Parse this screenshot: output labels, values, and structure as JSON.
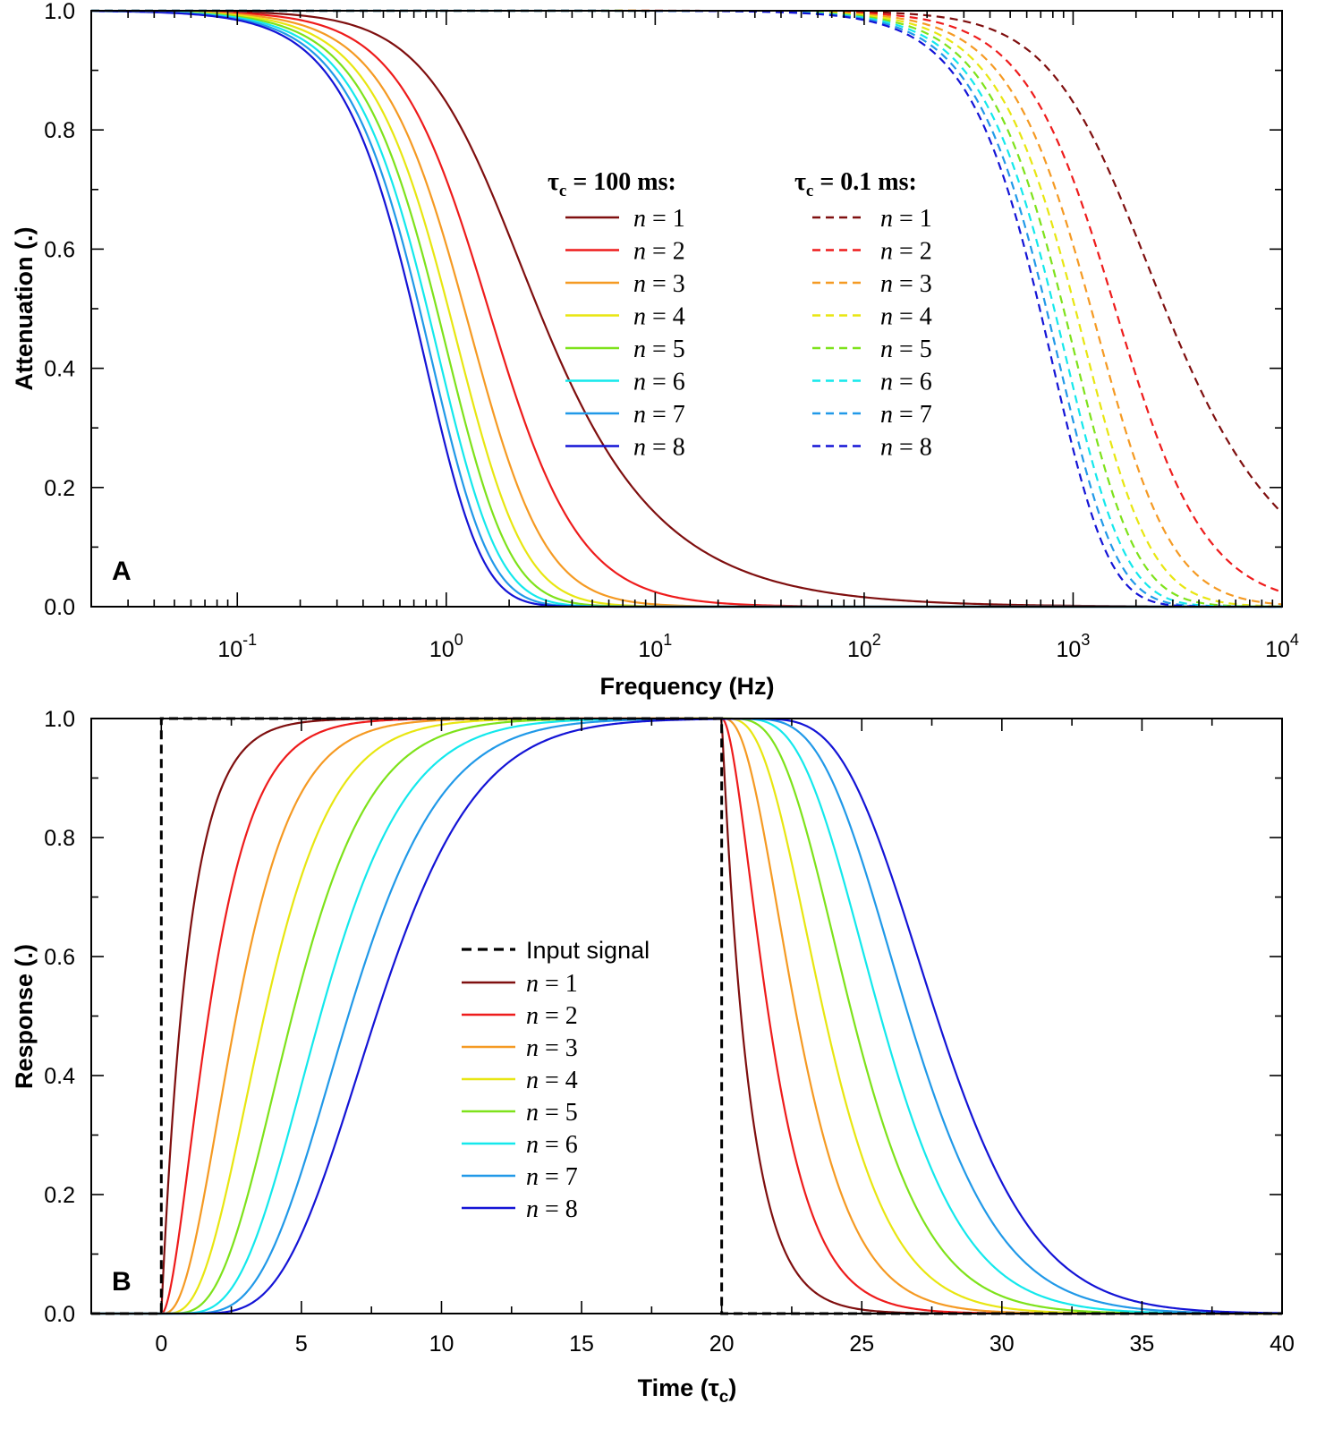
{
  "chart_data": [
    {
      "panel": "A",
      "type": "line",
      "xlabel": "Frequency  (Hz)",
      "ylabel": "Attenuation  (.)",
      "xscale": "log",
      "xlim": [
        0.02,
        10000
      ],
      "ylim": [
        0,
        1
      ],
      "x_tick_labels": [
        {
          "base": "10",
          "exp": "-1",
          "value": 0.1
        },
        {
          "base": "10",
          "exp": "0",
          "value": 1
        },
        {
          "base": "10",
          "exp": "1",
          "value": 10
        },
        {
          "base": "10",
          "exp": "2",
          "value": 100
        },
        {
          "base": "10",
          "exp": "3",
          "value": 1000
        },
        {
          "base": "10",
          "exp": "4",
          "value": 10000
        }
      ],
      "y_ticks": [
        0,
        0.2,
        0.4,
        0.6,
        0.8,
        1
      ],
      "y_tick_labels": [
        "0.0",
        "0.2",
        "0.4",
        "0.6",
        "0.8",
        "1.0"
      ],
      "model": "attenuation = (1 + (2*pi*f*tau_c)^2)^(-n/2)",
      "legend_groups": [
        {
          "heading": "τ",
          "heading_sub": "c",
          "heading_rest": " = 100 ms:",
          "tau_c_seconds": 0.1,
          "dash": "solid",
          "position": "center"
        },
        {
          "heading": "τ",
          "heading_sub": "c",
          "heading_rest": " = 0.1 ms:",
          "tau_c_seconds": 0.0001,
          "dash": "dashed",
          "position": "center-right"
        }
      ],
      "series": [
        {
          "n": 1,
          "label_var": "n",
          "label_rest": " = 1",
          "color": "#7f0f0f"
        },
        {
          "n": 2,
          "label_var": "n",
          "label_rest": " = 2",
          "color": "#ee1c1c"
        },
        {
          "n": 3,
          "label_var": "n",
          "label_rest": " = 3",
          "color": "#f59a23"
        },
        {
          "n": 4,
          "label_var": "n",
          "label_rest": " = 4",
          "color": "#e8e611"
        },
        {
          "n": 5,
          "label_var": "n",
          "label_rest": " = 5",
          "color": "#7ee21b"
        },
        {
          "n": 6,
          "label_var": "n",
          "label_rest": " = 6",
          "color": "#14e8ec"
        },
        {
          "n": 7,
          "label_var": "n",
          "label_rest": " = 7",
          "color": "#2199e8"
        },
        {
          "n": 8,
          "label_var": "n",
          "label_rest": " = 8",
          "color": "#1414d6"
        }
      ]
    },
    {
      "panel": "B",
      "type": "line",
      "xlabel": "Time  (τ",
      "xlabel_sub": "c",
      "xlabel_end": ")",
      "ylabel": "Response  (.)",
      "xlim": [
        -2.5,
        40
      ],
      "ylim": [
        0,
        1
      ],
      "x_ticks": [
        0,
        5,
        10,
        15,
        20,
        25,
        30,
        35,
        40
      ],
      "x_tick_labels": [
        "0",
        "5",
        "10",
        "15",
        "20",
        "25",
        "30",
        "35",
        "40"
      ],
      "y_ticks": [
        0,
        0.2,
        0.4,
        0.6,
        0.8,
        1
      ],
      "y_tick_labels": [
        "0.0",
        "0.2",
        "0.4",
        "0.6",
        "0.8",
        "1.0"
      ],
      "input_signal": {
        "label": "Input signal",
        "on": 0,
        "off": 20,
        "color": "#000000",
        "dash": "dashed"
      },
      "model": "step response of n cascaded first-order stages, pulse from t=0 to t=20 tau_c",
      "legend_position": "center",
      "series": [
        {
          "n": 1,
          "label_var": "n",
          "label_rest": " = 1",
          "color": "#7f0f0f"
        },
        {
          "n": 2,
          "label_var": "n",
          "label_rest": " = 2",
          "color": "#ee1c1c"
        },
        {
          "n": 3,
          "label_var": "n",
          "label_rest": " = 3",
          "color": "#f59a23"
        },
        {
          "n": 4,
          "label_var": "n",
          "label_rest": " = 4",
          "color": "#e8e611"
        },
        {
          "n": 5,
          "label_var": "n",
          "label_rest": " = 5",
          "color": "#7ee21b"
        },
        {
          "n": 6,
          "label_var": "n",
          "label_rest": " = 6",
          "color": "#14e8ec"
        },
        {
          "n": 7,
          "label_var": "n",
          "label_rest": " = 7",
          "color": "#2199e8"
        },
        {
          "n": 8,
          "label_var": "n",
          "label_rest": " = 8",
          "color": "#1414d6"
        }
      ]
    }
  ]
}
